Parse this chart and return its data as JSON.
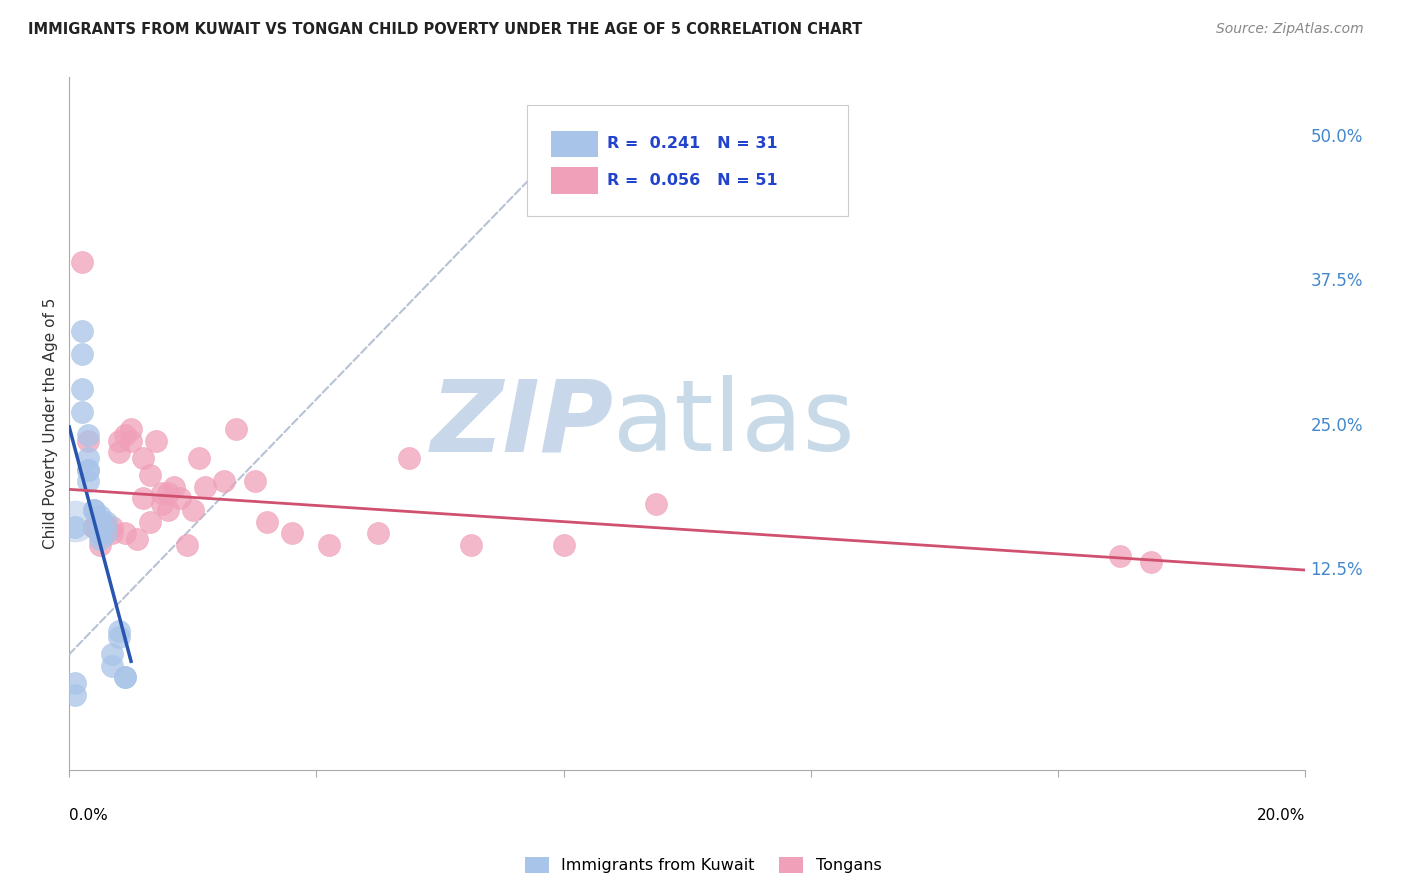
{
  "title": "IMMIGRANTS FROM KUWAIT VS TONGAN CHILD POVERTY UNDER THE AGE OF 5 CORRELATION CHART",
  "source": "Source: ZipAtlas.com",
  "ylabel": "Child Poverty Under the Age of 5",
  "y_ticks_right": [
    0.0,
    0.125,
    0.25,
    0.375,
    0.5
  ],
  "y_tick_labels_right": [
    "",
    "12.5%",
    "25.0%",
    "37.5%",
    "50.0%"
  ],
  "xlim": [
    0.0,
    0.2
  ],
  "ylim": [
    -0.05,
    0.55
  ],
  "blue_color": "#a8c4e8",
  "pink_color": "#f0a0b8",
  "blue_line_color": "#2855b0",
  "pink_line_color": "#d05070",
  "blue_dashed_color": "#b0bcd0",
  "R_blue": 0.241,
  "N_blue": 31,
  "R_pink": 0.056,
  "N_pink": 51,
  "blue_points_x": [
    0.001,
    0.001,
    0.001,
    0.002,
    0.002,
    0.002,
    0.002,
    0.003,
    0.003,
    0.003,
    0.003,
    0.003,
    0.004,
    0.004,
    0.004,
    0.005,
    0.005,
    0.005,
    0.005,
    0.005,
    0.005,
    0.005,
    0.005,
    0.006,
    0.006,
    0.007,
    0.007,
    0.008,
    0.008,
    0.009,
    0.009
  ],
  "blue_points_y": [
    0.16,
    0.025,
    0.015,
    0.26,
    0.28,
    0.31,
    0.33,
    0.21,
    0.22,
    0.24,
    0.2,
    0.21,
    0.16,
    0.175,
    0.175,
    0.15,
    0.155,
    0.16,
    0.165,
    0.155,
    0.16,
    0.165,
    0.17,
    0.155,
    0.165,
    0.05,
    0.04,
    0.065,
    0.07,
    0.03,
    0.03
  ],
  "pink_points_x": [
    0.002,
    0.003,
    0.004,
    0.004,
    0.005,
    0.005,
    0.005,
    0.005,
    0.005,
    0.005,
    0.005,
    0.006,
    0.006,
    0.006,
    0.007,
    0.007,
    0.008,
    0.008,
    0.009,
    0.009,
    0.01,
    0.01,
    0.011,
    0.012,
    0.012,
    0.013,
    0.013,
    0.014,
    0.015,
    0.015,
    0.016,
    0.016,
    0.017,
    0.018,
    0.019,
    0.02,
    0.021,
    0.022,
    0.025,
    0.027,
    0.03,
    0.032,
    0.036,
    0.042,
    0.05,
    0.055,
    0.065,
    0.08,
    0.095,
    0.17,
    0.175
  ],
  "pink_points_y": [
    0.39,
    0.235,
    0.16,
    0.16,
    0.155,
    0.155,
    0.155,
    0.16,
    0.16,
    0.165,
    0.145,
    0.16,
    0.155,
    0.16,
    0.16,
    0.155,
    0.225,
    0.235,
    0.24,
    0.155,
    0.235,
    0.245,
    0.15,
    0.185,
    0.22,
    0.165,
    0.205,
    0.235,
    0.18,
    0.19,
    0.175,
    0.19,
    0.195,
    0.185,
    0.145,
    0.175,
    0.22,
    0.195,
    0.2,
    0.245,
    0.2,
    0.165,
    0.155,
    0.145,
    0.155,
    0.22,
    0.145,
    0.145,
    0.18,
    0.135,
    0.13
  ]
}
